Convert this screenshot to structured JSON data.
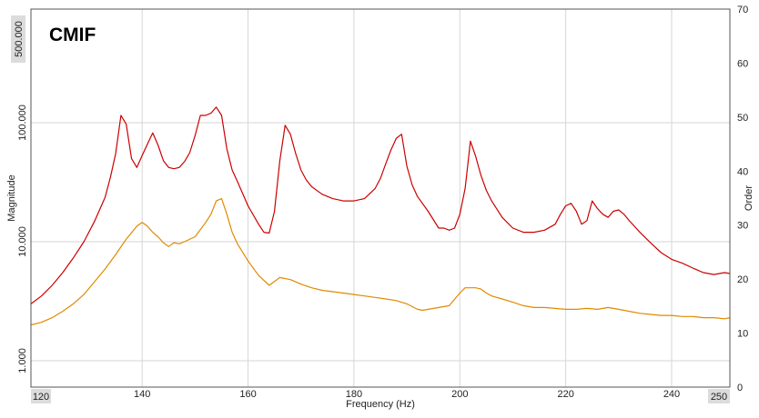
{
  "chart_data": {
    "type": "line",
    "title": "CMIF",
    "xlabel": "Frequency (Hz)",
    "ylabel": "Magnitude",
    "y2label": "Order",
    "xlim": [
      119,
      251
    ],
    "ylim": [
      0.6,
      900
    ],
    "yscale": "log",
    "y2lim": [
      0,
      70
    ],
    "grid": true,
    "colors": {
      "series1": "#cc0000",
      "series2": "#e08a00"
    },
    "x_ticks": [
      140,
      160,
      180,
      200,
      220,
      240
    ],
    "x_tick_labels": [
      "140",
      "160",
      "180",
      "200",
      "220",
      "240"
    ],
    "x_edge_labels": [
      "120",
      "250"
    ],
    "y_tick_values": [
      1,
      10,
      100
    ],
    "y_tick_labels": [
      "1.000",
      "10.000",
      "100.000"
    ],
    "y_top_label": "500.000",
    "y2_tick_values": [
      0,
      10,
      20,
      30,
      40,
      50,
      60,
      70
    ],
    "y2_tick_labels": [
      "0",
      "10",
      "20",
      "30",
      "40",
      "50",
      "60",
      "70"
    ],
    "series": [
      {
        "x": [
          119,
          121,
          123,
          125,
          127,
          129,
          131,
          133,
          134,
          135,
          136,
          137,
          138,
          139,
          140,
          141,
          142,
          143,
          144,
          145,
          146,
          147,
          148,
          149,
          150,
          151,
          152,
          153,
          154,
          155,
          156,
          157,
          158,
          160,
          162,
          163,
          164,
          165,
          166,
          167,
          168,
          169,
          170,
          171,
          172,
          174,
          176,
          178,
          180,
          182,
          184,
          185,
          186,
          187,
          188,
          189,
          190,
          191,
          192,
          194,
          196,
          197,
          198,
          199,
          200,
          201,
          202,
          203,
          204,
          205,
          206,
          208,
          210,
          212,
          214,
          216,
          218,
          219,
          220,
          221,
          222,
          223,
          224,
          225,
          226,
          227,
          228,
          229,
          230,
          231,
          232,
          234,
          236,
          238,
          240,
          242,
          244,
          246,
          248,
          250,
          251
        ],
        "y": [
          3.0,
          3.5,
          4.3,
          5.5,
          7.3,
          10.0,
          14.8,
          23.6,
          34.7,
          55.0,
          115.0,
          97.0,
          50.0,
          42.0,
          53.0,
          66.0,
          82.0,
          65.0,
          48.0,
          42.0,
          41.0,
          42.0,
          47.0,
          56.0,
          78.0,
          115.0,
          115.0,
          120.0,
          135.0,
          115.0,
          60.0,
          40.0,
          32.0,
          20.0,
          14.0,
          12.0,
          11.8,
          18.0,
          48.0,
          95.0,
          80.0,
          55.0,
          40.0,
          33.0,
          29.0,
          25.0,
          23.0,
          22.0,
          22.0,
          23.0,
          28.0,
          34.0,
          45.0,
          59.0,
          74.0,
          80.0,
          43.0,
          30.0,
          24.0,
          18.0,
          13.0,
          13.0,
          12.5,
          13.0,
          17.0,
          28.0,
          70.0,
          52.0,
          36.0,
          27.0,
          22.0,
          16.0,
          13.0,
          12.0,
          12.0,
          12.5,
          14.0,
          17.0,
          20.0,
          21.0,
          18.0,
          14.0,
          15.0,
          22.0,
          19.0,
          17.0,
          16.0,
          18.0,
          18.5,
          17.0,
          15.0,
          12.0,
          9.8,
          8.1,
          7.1,
          6.6,
          6.0,
          5.5,
          5.3,
          5.5,
          5.4
        ]
      },
      {
        "x": [
          119,
          121,
          123,
          125,
          127,
          129,
          131,
          133,
          135,
          137,
          139,
          140,
          141,
          142,
          143,
          144,
          145,
          146,
          147,
          148,
          150,
          152,
          153,
          154,
          155,
          156,
          157,
          158,
          160,
          162,
          164,
          166,
          168,
          170,
          172,
          174,
          176,
          178,
          180,
          182,
          184,
          186,
          188,
          190,
          192,
          193,
          194,
          196,
          198,
          200,
          201,
          202,
          203,
          204,
          205,
          206,
          208,
          210,
          212,
          214,
          216,
          218,
          220,
          222,
          224,
          226,
          228,
          230,
          232,
          234,
          236,
          238,
          240,
          242,
          244,
          246,
          248,
          250,
          251
        ],
        "y": [
          2.0,
          2.1,
          2.3,
          2.6,
          3.0,
          3.6,
          4.6,
          5.9,
          7.8,
          10.5,
          13.5,
          14.5,
          13.5,
          12.0,
          11.0,
          9.8,
          9.1,
          9.8,
          9.6,
          10.0,
          11.0,
          14.5,
          17.0,
          22.0,
          23.0,
          17.0,
          12.0,
          9.6,
          6.9,
          5.2,
          4.3,
          5.0,
          4.8,
          4.4,
          4.1,
          3.9,
          3.8,
          3.7,
          3.6,
          3.5,
          3.4,
          3.3,
          3.2,
          3.0,
          2.7,
          2.65,
          2.7,
          2.8,
          2.9,
          3.7,
          4.1,
          4.1,
          4.1,
          4.0,
          3.7,
          3.5,
          3.3,
          3.1,
          2.9,
          2.8,
          2.8,
          2.75,
          2.7,
          2.7,
          2.75,
          2.7,
          2.8,
          2.7,
          2.6,
          2.5,
          2.45,
          2.4,
          2.4,
          2.35,
          2.35,
          2.3,
          2.3,
          2.25,
          2.3
        ]
      }
    ]
  }
}
